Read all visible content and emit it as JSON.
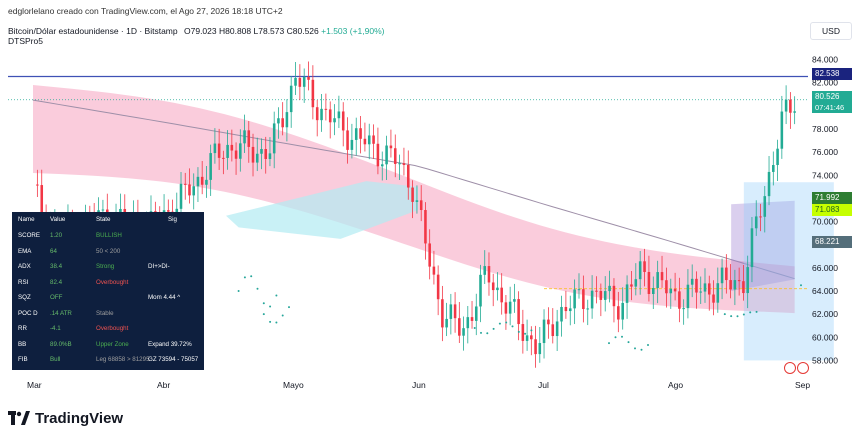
{
  "header": {
    "author_line": "edglorlelano creado con TradingView.com, el Ago 27, 2026 18:18 UTC+2",
    "symbol": "Bitcoin/Dólar estadounidense · 1D · Bitstamp",
    "ohlc": {
      "o": "O79.023",
      "h": "H80.808",
      "l": "L78.573",
      "c": "C80.526",
      "change": "+1.503 (+1,90%)"
    },
    "indicator": "DTSPro5"
  },
  "axis": {
    "currency": "USD",
    "y_ticks": [
      "84.000",
      "82.000",
      "80.000",
      "78.000",
      "76.000",
      "74.000",
      "72.000",
      "70.000",
      "68.000",
      "66.000",
      "64.000",
      "62.000",
      "60.000",
      "58.000"
    ],
    "x_ticks": [
      "Mar",
      "Abr",
      "Mayo",
      "Jun",
      "Jul",
      "Ago",
      "Sep"
    ]
  },
  "price_tags": {
    "level_blue": "82.538",
    "last_price": "80.526",
    "countdown": "07:41:46",
    "tag_green": "71.992",
    "tag_yellow": "71.083",
    "tag_gray": "68.221"
  },
  "stats_table": {
    "headers": [
      "Name",
      "Value",
      "State",
      "Sig"
    ],
    "rows": [
      [
        "SCORE",
        "1.20",
        "BULLISH",
        ""
      ],
      [
        "EMA",
        "64",
        "50 < 200",
        ""
      ],
      [
        "ADX",
        "38.4",
        "Strong",
        "DI+>DI-"
      ],
      [
        "RSI",
        "82.4",
        "Overbought",
        ""
      ],
      [
        "SQZ",
        "OFF",
        "",
        "Mom 4.44 ^"
      ],
      [
        "POC D",
        ".14 ATR",
        "Stable",
        ""
      ],
      [
        "RR",
        "-4.1",
        "Overbought",
        ""
      ],
      [
        "BB",
        "89.0%B",
        "Upper Zone",
        "Expand 39.72%"
      ],
      [
        "FIB",
        "Bull",
        "Leg 68858 > 81295",
        "GZ 73594 - 75057"
      ]
    ]
  },
  "colors": {
    "bull": "#22ab94",
    "bear": "#f23645",
    "cloud_pink": "#f8bbd0",
    "cloud_cyan": "#b2ebf2",
    "level_line": "#3f51b5",
    "table_bg": "#0e1f3e"
  },
  "footer": {
    "brand": "TradingView"
  },
  "chart_data": {
    "type": "candlestick",
    "symbol": "BTC/USD",
    "timeframe": "1D",
    "ylim": [
      57000,
      85000
    ],
    "x_months": [
      "Mar",
      "Abr",
      "Mayo",
      "Jun",
      "Jul",
      "Ago",
      "Sep"
    ],
    "close_path": [
      {
        "month": "Mar",
        "value": 72500
      },
      {
        "month": "Mar",
        "value": 69000
      },
      {
        "month": "Abr",
        "value": 71500
      },
      {
        "month": "Abr",
        "value": 77000
      },
      {
        "month": "Mayo",
        "value": 82500
      },
      {
        "month": "Mayo",
        "value": 78000
      },
      {
        "month": "Jun",
        "value": 74000
      },
      {
        "month": "Jun",
        "value": 61000
      },
      {
        "month": "Jul",
        "value": 59000
      },
      {
        "month": "Jul",
        "value": 63500
      },
      {
        "month": "Ago",
        "value": 63000
      },
      {
        "month": "Ago",
        "value": 80526
      }
    ],
    "last": {
      "open": 79023,
      "high": 80808,
      "low": 78573,
      "close": 80526,
      "change": 1503,
      "change_pct": 1.9
    },
    "horizontal_level": 82538
  }
}
